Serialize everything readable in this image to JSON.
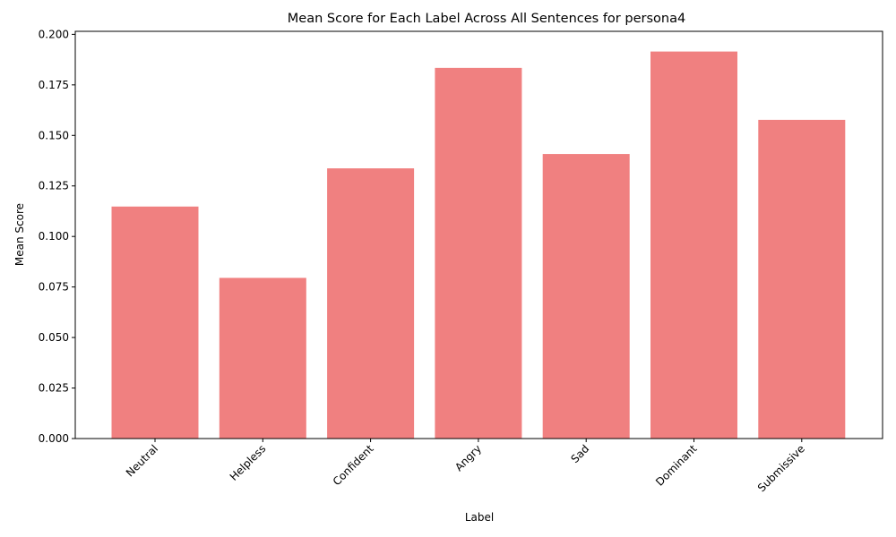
{
  "chart_data": {
    "type": "bar",
    "title": "Mean Score for Each Label Across All Sentences for persona4",
    "xlabel": "Label",
    "ylabel": "Mean Score",
    "categories": [
      "Neutral",
      "Helpless",
      "Confident",
      "Angry",
      "Sad",
      "Dominant",
      "Submissive"
    ],
    "values": [
      0.1148,
      0.0795,
      0.1337,
      0.1834,
      0.1408,
      0.1915,
      0.1577
    ],
    "ylim": [
      0,
      0.2015
    ],
    "yticks": [
      "0.000",
      "0.025",
      "0.050",
      "0.075",
      "0.100",
      "0.125",
      "0.150",
      "0.175",
      "0.200"
    ],
    "bar_color": "#f08080",
    "grid": false,
    "legend": "none"
  }
}
